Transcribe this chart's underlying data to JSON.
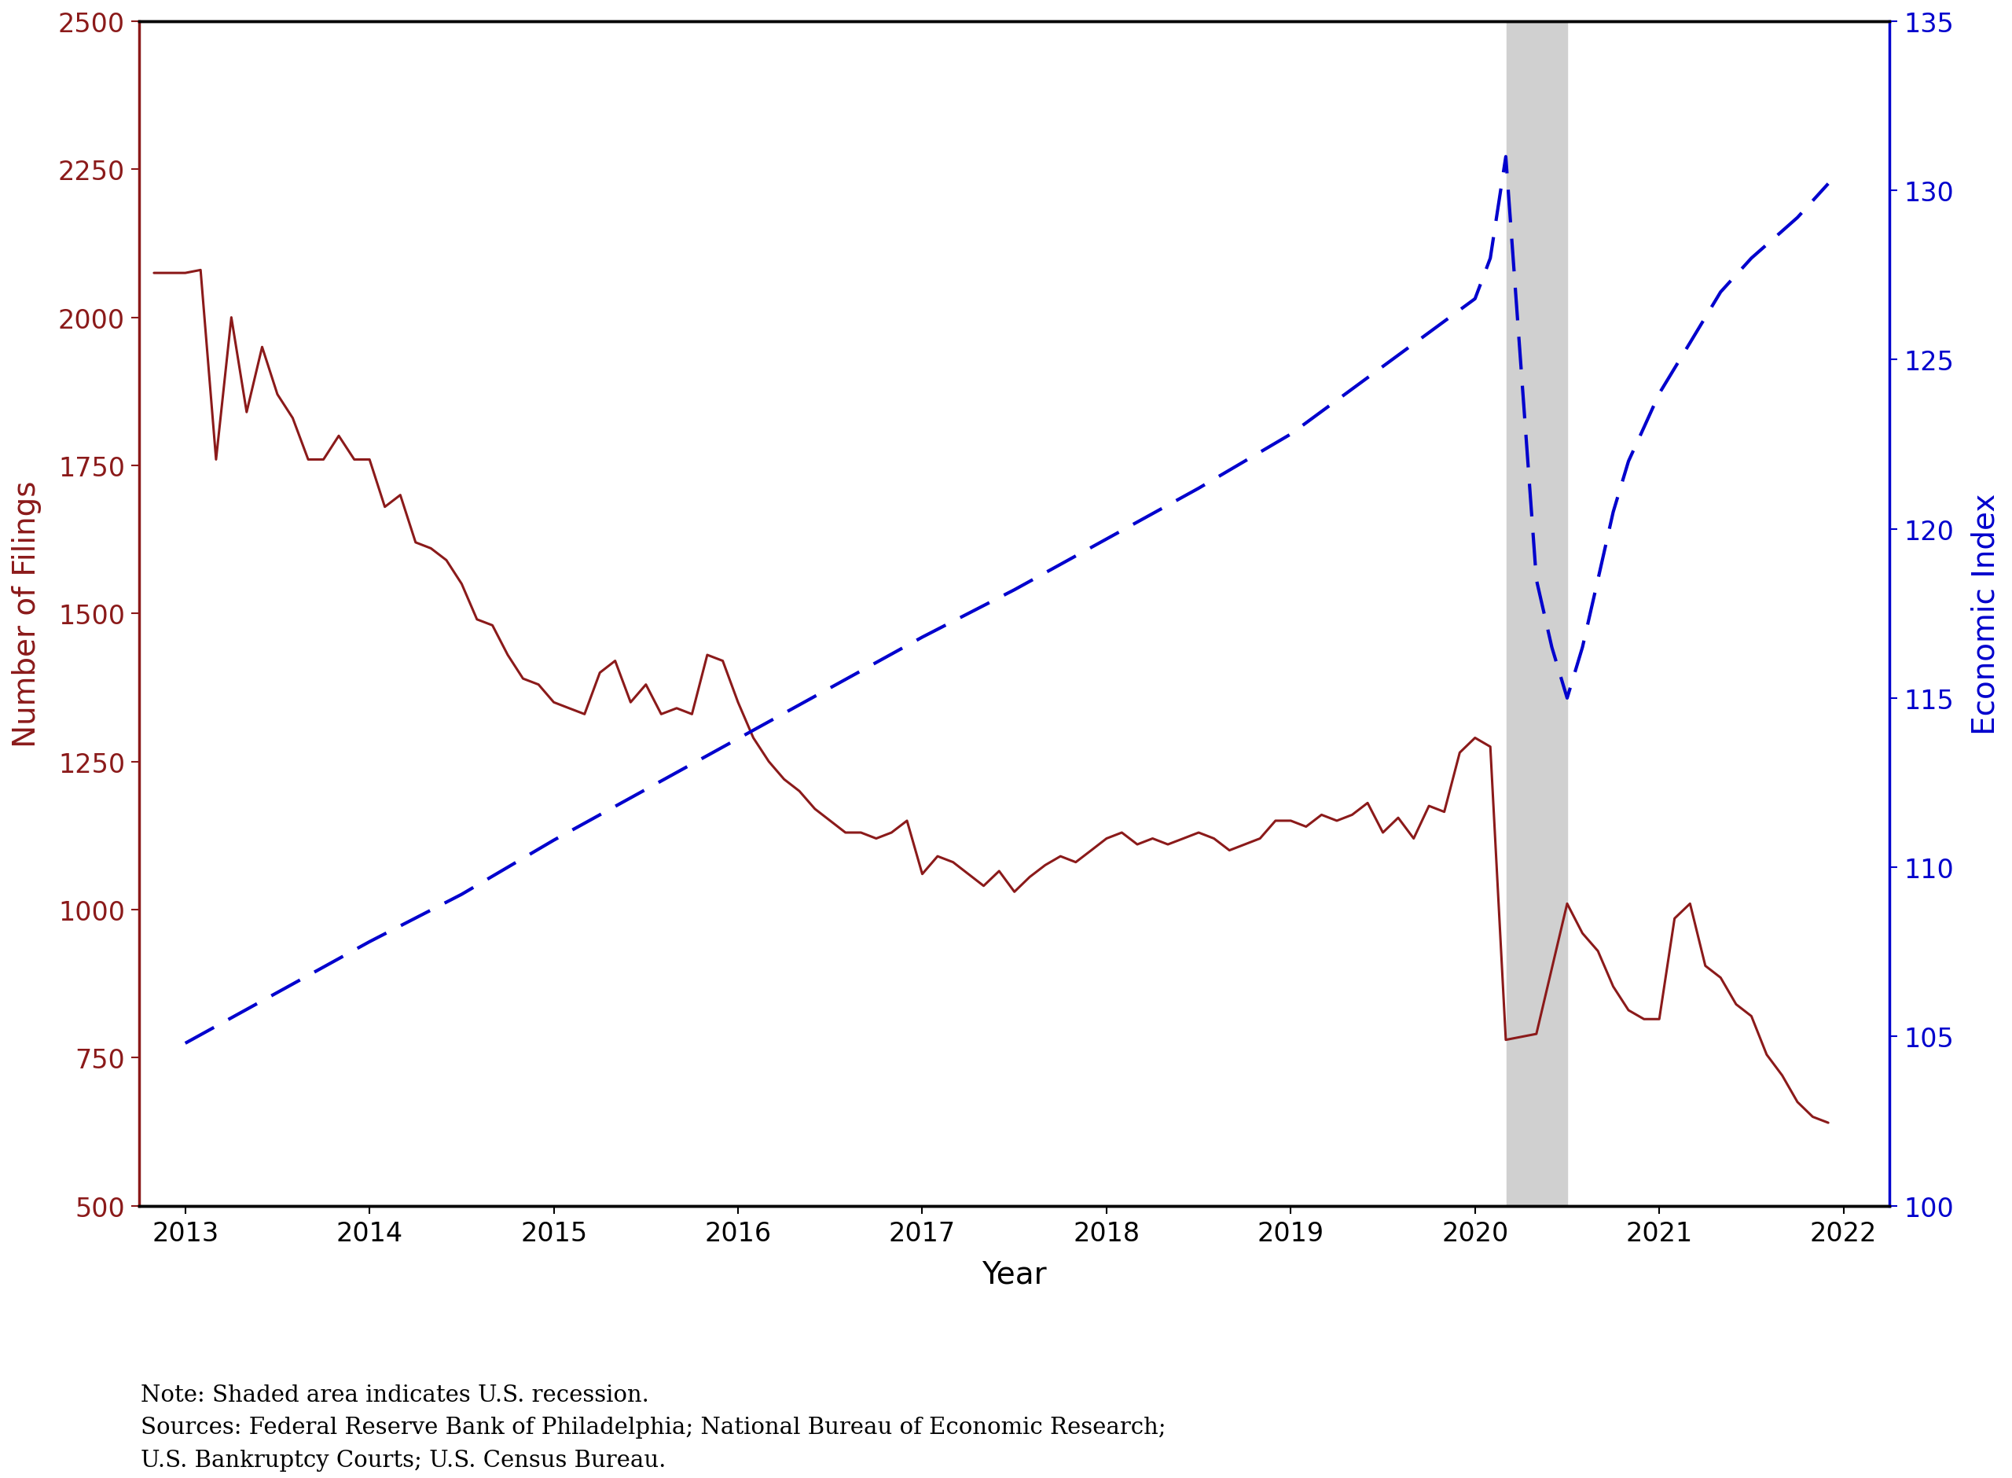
{
  "xlabel": "Year",
  "ylabel_left": "Number of Filings",
  "ylabel_right": "Economic Index",
  "background_color": "#ffffff",
  "left_color": "#8B1A1A",
  "right_color": "#0000CD",
  "recession_start": 2020.17,
  "recession_end": 2020.5,
  "recession_color": "#d0d0d0",
  "ylim_left": [
    500,
    2500
  ],
  "ylim_right": [
    100,
    135
  ],
  "xlim": [
    2012.75,
    2022.25
  ],
  "yticks_left": [
    500,
    750,
    1000,
    1250,
    1500,
    1750,
    2000,
    2250,
    2500
  ],
  "yticks_right": [
    100,
    105,
    110,
    115,
    120,
    125,
    130,
    135
  ],
  "xticks": [
    2013,
    2014,
    2015,
    2016,
    2017,
    2018,
    2019,
    2020,
    2021,
    2022
  ],
  "note_text": "Note: Shaded area indicates U.S. recession.\nSources: Federal Reserve Bank of Philadelphia; National Bureau of Economic Research;\nU.S. Bankruptcy Courts; U.S. Census Bureau.",
  "filings_x": [
    2012.83,
    2013.0,
    2013.083,
    2013.167,
    2013.25,
    2013.333,
    2013.417,
    2013.5,
    2013.583,
    2013.667,
    2013.75,
    2013.833,
    2013.917,
    2014.0,
    2014.083,
    2014.167,
    2014.25,
    2014.333,
    2014.417,
    2014.5,
    2014.583,
    2014.667,
    2014.75,
    2014.833,
    2014.917,
    2015.0,
    2015.083,
    2015.167,
    2015.25,
    2015.333,
    2015.417,
    2015.5,
    2015.583,
    2015.667,
    2015.75,
    2015.833,
    2015.917,
    2016.0,
    2016.083,
    2016.167,
    2016.25,
    2016.333,
    2016.417,
    2016.5,
    2016.583,
    2016.667,
    2016.75,
    2016.833,
    2016.917,
    2017.0,
    2017.083,
    2017.167,
    2017.25,
    2017.333,
    2017.417,
    2017.5,
    2017.583,
    2017.667,
    2017.75,
    2017.833,
    2017.917,
    2018.0,
    2018.083,
    2018.167,
    2018.25,
    2018.333,
    2018.417,
    2018.5,
    2018.583,
    2018.667,
    2018.75,
    2018.833,
    2018.917,
    2019.0,
    2019.083,
    2019.167,
    2019.25,
    2019.333,
    2019.417,
    2019.5,
    2019.583,
    2019.667,
    2019.75,
    2019.833,
    2019.917,
    2020.0,
    2020.083,
    2020.167,
    2020.333,
    2020.5,
    2020.583,
    2020.667,
    2020.75,
    2020.833,
    2020.917,
    2021.0,
    2021.083,
    2021.167,
    2021.25,
    2021.333,
    2021.417,
    2021.5,
    2021.583,
    2021.667,
    2021.75,
    2021.833,
    2021.917
  ],
  "filings_y": [
    2075,
    2075,
    2080,
    1760,
    2000,
    1840,
    1950,
    1870,
    1830,
    1760,
    1760,
    1800,
    1760,
    1760,
    1680,
    1700,
    1620,
    1610,
    1590,
    1550,
    1490,
    1480,
    1430,
    1390,
    1380,
    1350,
    1340,
    1330,
    1400,
    1420,
    1350,
    1380,
    1330,
    1340,
    1330,
    1430,
    1420,
    1350,
    1290,
    1250,
    1220,
    1200,
    1170,
    1150,
    1130,
    1130,
    1120,
    1130,
    1150,
    1060,
    1090,
    1080,
    1060,
    1040,
    1065,
    1030,
    1055,
    1075,
    1090,
    1080,
    1100,
    1120,
    1130,
    1110,
    1120,
    1110,
    1120,
    1130,
    1120,
    1100,
    1110,
    1120,
    1150,
    1150,
    1140,
    1160,
    1150,
    1160,
    1180,
    1130,
    1155,
    1120,
    1175,
    1165,
    1265,
    1290,
    1275,
    780,
    790,
    1010,
    960,
    930,
    870,
    830,
    815,
    815,
    985,
    1010,
    905,
    885,
    840,
    820,
    755,
    720,
    675,
    650,
    640
  ],
  "econ_x": [
    2013.0,
    2013.5,
    2014.0,
    2014.5,
    2015.0,
    2015.5,
    2016.0,
    2016.5,
    2017.0,
    2017.5,
    2018.0,
    2018.5,
    2019.0,
    2019.5,
    2020.0,
    2020.083,
    2020.167,
    2020.333,
    2020.417,
    2020.5,
    2020.583,
    2020.667,
    2020.75,
    2020.833,
    2020.917,
    2021.0,
    2021.167,
    2021.333,
    2021.5,
    2021.667,
    2021.75,
    2021.917
  ],
  "econ_y": [
    104.8,
    106.3,
    107.8,
    109.2,
    110.8,
    112.3,
    113.8,
    115.3,
    116.8,
    118.2,
    119.7,
    121.2,
    122.8,
    124.8,
    126.8,
    128.0,
    131.0,
    118.5,
    116.5,
    115.0,
    116.5,
    118.5,
    120.5,
    122.0,
    123.0,
    124.0,
    125.5,
    127.0,
    128.0,
    128.8,
    129.2,
    130.2
  ]
}
